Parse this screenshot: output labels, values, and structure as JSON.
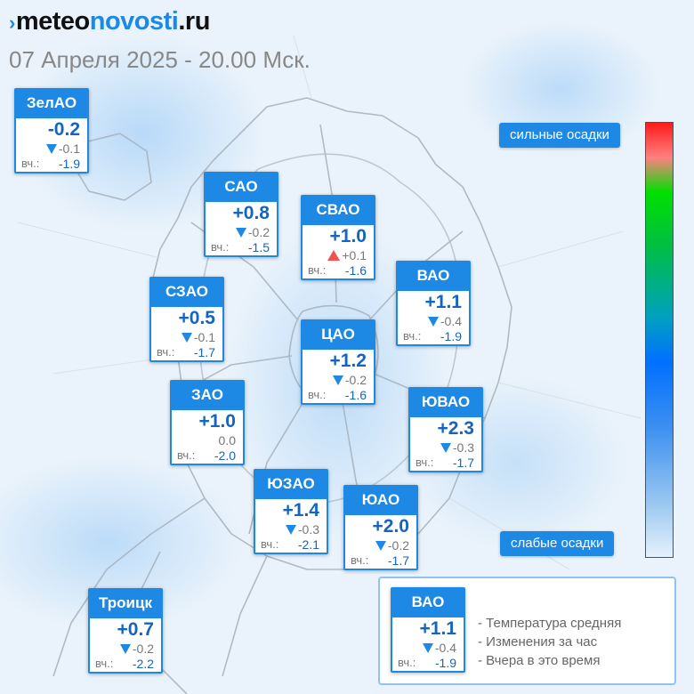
{
  "header": {
    "logo_part1": "meteo",
    "logo_part2": "novosti",
    "logo_part3": ".ru",
    "datetime": "07 Апреля 2025 - 20.00 Мск."
  },
  "colors": {
    "accent": "#1e88e5",
    "temp": "#1565c0",
    "rise": "#ef5350",
    "fall": "#1e88e5"
  },
  "yesterday_label": "вч.:",
  "districts": [
    {
      "id": "zelao",
      "name": "ЗелАО",
      "temp": "-0.2",
      "trend": "down",
      "change": "-0.1",
      "yesterday": "-1.9"
    },
    {
      "id": "sao",
      "name": "САО",
      "temp": "+0.8",
      "trend": "down",
      "change": "-0.2",
      "yesterday": "-1.5"
    },
    {
      "id": "svao",
      "name": "СВАО",
      "temp": "+1.0",
      "trend": "up",
      "change": "+0.1",
      "yesterday": "-1.6"
    },
    {
      "id": "szao",
      "name": "СЗАО",
      "temp": "+0.5",
      "trend": "down",
      "change": "-0.1",
      "yesterday": "-1.7"
    },
    {
      "id": "vao",
      "name": "ВАО",
      "temp": "+1.1",
      "trend": "down",
      "change": "-0.4",
      "yesterday": "-1.9"
    },
    {
      "id": "cao",
      "name": "ЦАО",
      "temp": "+1.2",
      "trend": "down",
      "change": "-0.2",
      "yesterday": "-1.6"
    },
    {
      "id": "zao",
      "name": "ЗАО",
      "temp": "+1.0",
      "trend": "none",
      "change": "0.0",
      "yesterday": "-2.0"
    },
    {
      "id": "yuvao",
      "name": "ЮВАО",
      "temp": "+2.3",
      "trend": "down",
      "change": "-0.3",
      "yesterday": "-1.7"
    },
    {
      "id": "yuzao",
      "name": "ЮЗАО",
      "temp": "+1.4",
      "trend": "down",
      "change": "-0.3",
      "yesterday": "-2.1"
    },
    {
      "id": "yuao",
      "name": "ЮАО",
      "temp": "+2.0",
      "trend": "down",
      "change": "-0.2",
      "yesterday": "-1.7"
    },
    {
      "id": "troitsk",
      "name": "Троицк",
      "temp": "+0.7",
      "trend": "down",
      "change": "-0.2",
      "yesterday": "-2.2"
    }
  ],
  "scale": {
    "top_label": "сильные осадки",
    "bottom_label": "слабые осадки"
  },
  "legend": {
    "sample": {
      "name": "ВАО",
      "temp": "+1.1",
      "trend": "down",
      "change": "-0.4",
      "yesterday": "-1.9"
    },
    "line1": "- Температура средняя",
    "line2": "- Изменения за час",
    "line3": "- Вчера в это время"
  }
}
